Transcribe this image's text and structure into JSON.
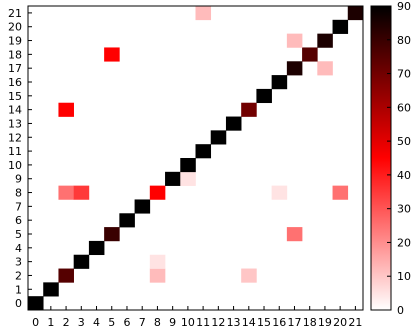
{
  "chart_data": {
    "type": "heatmap",
    "title": "",
    "xlabel": "",
    "ylabel": "",
    "x_categories": [
      "0",
      "1",
      "2",
      "3",
      "4",
      "5",
      "6",
      "7",
      "8",
      "9",
      "10",
      "11",
      "12",
      "13",
      "14",
      "15",
      "16",
      "17",
      "18",
      "19",
      "20",
      "21"
    ],
    "y_categories": [
      "0",
      "1",
      "2",
      "3",
      "4",
      "5",
      "6",
      "7",
      "8",
      "9",
      "10",
      "11",
      "12",
      "13",
      "14",
      "15",
      "16",
      "17",
      "18",
      "19",
      "20",
      "21"
    ],
    "value_range": [
      0,
      90
    ],
    "colorbar_ticks": [
      0,
      10,
      20,
      30,
      40,
      50,
      60,
      70,
      80,
      90
    ],
    "colormap": [
      "#ffffff",
      "#ff0000",
      "#000000"
    ],
    "cells": [
      {
        "x": 0,
        "y": 0,
        "value": 90
      },
      {
        "x": 1,
        "y": 1,
        "value": 90
      },
      {
        "x": 2,
        "y": 2,
        "value": 75
      },
      {
        "x": 8,
        "y": 2,
        "value": 12
      },
      {
        "x": 14,
        "y": 2,
        "value": 10
      },
      {
        "x": 3,
        "y": 3,
        "value": 90
      },
      {
        "x": 8,
        "y": 3,
        "value": 5
      },
      {
        "x": 4,
        "y": 4,
        "value": 90
      },
      {
        "x": 5,
        "y": 5,
        "value": 80
      },
      {
        "x": 17,
        "y": 5,
        "value": 25
      },
      {
        "x": 6,
        "y": 6,
        "value": 90
      },
      {
        "x": 7,
        "y": 7,
        "value": 90
      },
      {
        "x": 2,
        "y": 8,
        "value": 25
      },
      {
        "x": 3,
        "y": 8,
        "value": 35
      },
      {
        "x": 8,
        "y": 8,
        "value": 45
      },
      {
        "x": 16,
        "y": 8,
        "value": 5
      },
      {
        "x": 20,
        "y": 8,
        "value": 25
      },
      {
        "x": 9,
        "y": 9,
        "value": 90
      },
      {
        "x": 10,
        "y": 9,
        "value": 5
      },
      {
        "x": 10,
        "y": 10,
        "value": 90
      },
      {
        "x": 11,
        "y": 11,
        "value": 90
      },
      {
        "x": 12,
        "y": 12,
        "value": 90
      },
      {
        "x": 13,
        "y": 13,
        "value": 90
      },
      {
        "x": 2,
        "y": 14,
        "value": 45
      },
      {
        "x": 14,
        "y": 14,
        "value": 70
      },
      {
        "x": 15,
        "y": 15,
        "value": 90
      },
      {
        "x": 16,
        "y": 16,
        "value": 90
      },
      {
        "x": 17,
        "y": 17,
        "value": 85
      },
      {
        "x": 19,
        "y": 17,
        "value": 12
      },
      {
        "x": 5,
        "y": 18,
        "value": 45
      },
      {
        "x": 18,
        "y": 18,
        "value": 75
      },
      {
        "x": 17,
        "y": 19,
        "value": 12
      },
      {
        "x": 19,
        "y": 19,
        "value": 85
      },
      {
        "x": 20,
        "y": 20,
        "value": 90
      },
      {
        "x": 11,
        "y": 21,
        "value": 12
      },
      {
        "x": 21,
        "y": 21,
        "value": 85
      }
    ]
  }
}
